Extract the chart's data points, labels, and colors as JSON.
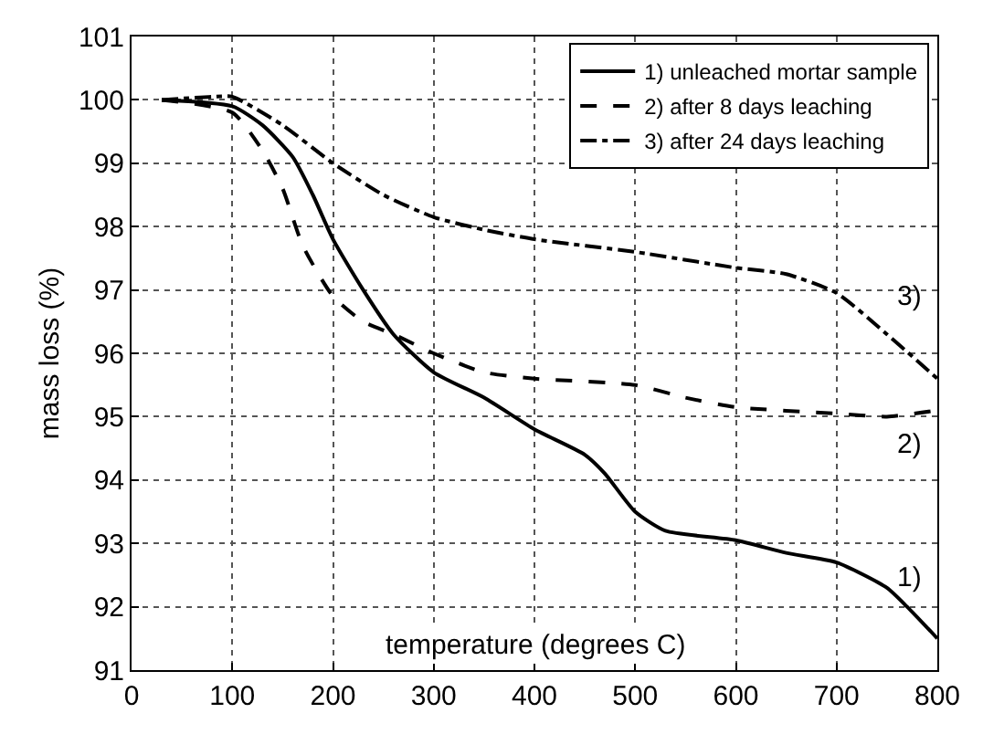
{
  "chart_data": {
    "type": "line",
    "xlabel": "temperature (degrees C)",
    "ylabel": "mass loss (%)",
    "xlim": [
      0,
      800
    ],
    "xticks": [
      0,
      100,
      200,
      300,
      400,
      500,
      600,
      700,
      800
    ],
    "ylim": [
      91,
      101
    ],
    "yticks": [
      91,
      92,
      93,
      94,
      95,
      96,
      97,
      98,
      99,
      100,
      101
    ],
    "grid": true,
    "legend": "top right",
    "marker": "none",
    "series": [
      {
        "name": "1) unleached mortar sample",
        "color": "#000000",
        "line_style": "solid",
        "x": [
          30,
          100,
          130,
          160,
          180,
          200,
          230,
          260,
          300,
          350,
          400,
          450,
          470,
          500,
          530,
          600,
          650,
          700,
          750,
          770,
          800
        ],
        "values": [
          100,
          99.9,
          99.6,
          99.1,
          98.5,
          97.8,
          97.0,
          96.3,
          95.7,
          95.3,
          94.8,
          94.4,
          94.1,
          93.5,
          93.2,
          93.05,
          92.85,
          92.7,
          92.3,
          92.0,
          91.5
        ]
      },
      {
        "name": "2) after 8 days leaching",
        "color": "#000000",
        "line_style": "dashed",
        "x": [
          30,
          100,
          130,
          150,
          170,
          200,
          230,
          260,
          300,
          350,
          400,
          500,
          550,
          600,
          700,
          750,
          800
        ],
        "values": [
          100,
          99.8,
          99.2,
          98.6,
          97.7,
          96.9,
          96.5,
          96.3,
          96.0,
          95.7,
          95.6,
          95.5,
          95.3,
          95.15,
          95.05,
          95.0,
          95.1
        ]
      },
      {
        "name": "3) after 24 days leaching",
        "color": "#000000",
        "line_style": "dashdot",
        "x": [
          30,
          80,
          100,
          150,
          200,
          250,
          300,
          350,
          400,
          500,
          600,
          650,
          700,
          750,
          800
        ],
        "values": [
          100,
          100.05,
          100.05,
          99.6,
          99.0,
          98.5,
          98.15,
          97.95,
          97.8,
          97.6,
          97.35,
          97.25,
          96.95,
          96.3,
          95.6
        ]
      }
    ],
    "annotations": [
      "3)",
      "2)",
      "1)"
    ]
  }
}
